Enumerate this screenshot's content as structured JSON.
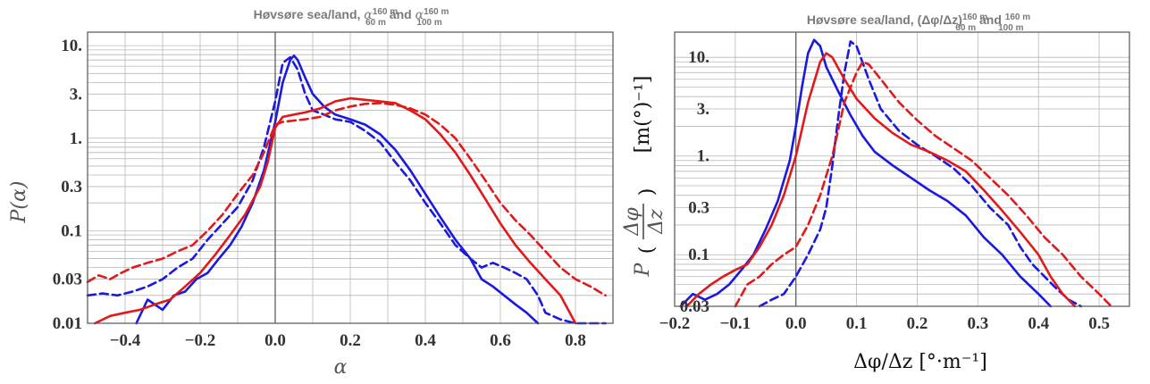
{
  "chart_data": [
    {
      "type": "line",
      "title": "Høvsøre sea/land, α|160 m/60 m and α|160 m/100 m",
      "title_parts": {
        "main": "Høvsøre sea/land, ",
        "sym1": "α",
        "and": " and ",
        "sym2": "α",
        "sup": "160 m",
        "sub1": "60 m",
        "sub2": "100 m"
      },
      "xlabel": "α",
      "ylabel": "P(α)",
      "xlim": [
        -0.5,
        0.9
      ],
      "ylim": [
        0.01,
        14
      ],
      "yscale": "log",
      "grid": true,
      "x_ticks": [
        -0.4,
        -0.2,
        0.0,
        0.2,
        0.4,
        0.6,
        0.8
      ],
      "x_tick_labels": [
        "−0.4",
        "−0.2",
        "0.0",
        "0.2",
        "0.4",
        "0.6",
        "0.8"
      ],
      "y_ticks": [
        0.01,
        0.03,
        0.1,
        0.3,
        1,
        3,
        10
      ],
      "y_tick_labels": [
        "0.01",
        "0.03",
        "0.1",
        "0.3",
        "1.",
        "3.",
        "10."
      ],
      "series": [
        {
          "color": "#1a1adf",
          "dash": "solid",
          "x": [
            -0.37,
            -0.34,
            -0.3,
            -0.27,
            -0.24,
            -0.21,
            -0.18,
            -0.15,
            -0.12,
            -0.09,
            -0.06,
            -0.03,
            0.0,
            0.02,
            0.04,
            0.05,
            0.06,
            0.08,
            0.1,
            0.13,
            0.16,
            0.2,
            0.24,
            0.28,
            0.32,
            0.36,
            0.4,
            0.44,
            0.48,
            0.52,
            0.55,
            0.58,
            0.61,
            0.64,
            0.67,
            0.7
          ],
          "values": [
            0.01,
            0.018,
            0.014,
            0.02,
            0.022,
            0.03,
            0.035,
            0.05,
            0.07,
            0.11,
            0.2,
            0.45,
            1.5,
            4.0,
            7.0,
            7.8,
            7.0,
            4.5,
            3.0,
            2.2,
            1.8,
            1.6,
            1.4,
            1.1,
            0.75,
            0.45,
            0.25,
            0.14,
            0.08,
            0.05,
            0.03,
            0.025,
            0.02,
            0.016,
            0.013,
            0.01
          ]
        },
        {
          "color": "#1a1adf",
          "dash": "dashed",
          "x": [
            -0.5,
            -0.46,
            -0.42,
            -0.38,
            -0.34,
            -0.3,
            -0.26,
            -0.22,
            -0.18,
            -0.14,
            -0.1,
            -0.06,
            -0.03,
            0.0,
            0.02,
            0.04,
            0.06,
            0.08,
            0.1,
            0.13,
            0.16,
            0.2,
            0.24,
            0.28,
            0.32,
            0.36,
            0.4,
            0.44,
            0.48,
            0.52,
            0.55,
            0.58,
            0.61,
            0.64,
            0.67,
            0.7,
            0.72,
            0.76,
            0.8,
            0.84,
            0.88
          ],
          "values": [
            0.02,
            0.021,
            0.02,
            0.022,
            0.025,
            0.03,
            0.04,
            0.05,
            0.08,
            0.12,
            0.18,
            0.35,
            0.8,
            2.5,
            6.5,
            7.5,
            5.5,
            3.0,
            2.0,
            1.8,
            1.6,
            1.5,
            1.2,
            0.9,
            0.55,
            0.35,
            0.2,
            0.12,
            0.07,
            0.05,
            0.04,
            0.045,
            0.04,
            0.035,
            0.03,
            0.02,
            0.013,
            0.011,
            0.01,
            0.01,
            0.01
          ]
        },
        {
          "color": "#e01a1a",
          "dash": "solid",
          "x": [
            -0.48,
            -0.44,
            -0.4,
            -0.36,
            -0.32,
            -0.28,
            -0.24,
            -0.2,
            -0.16,
            -0.12,
            -0.08,
            -0.04,
            -0.02,
            0.0,
            0.02,
            0.05,
            0.08,
            0.12,
            0.16,
            0.2,
            0.24,
            0.28,
            0.32,
            0.36,
            0.4,
            0.44,
            0.48,
            0.52,
            0.56,
            0.6,
            0.64,
            0.68,
            0.72,
            0.76,
            0.8
          ],
          "values": [
            0.01,
            0.012,
            0.013,
            0.014,
            0.016,
            0.018,
            0.025,
            0.035,
            0.055,
            0.09,
            0.15,
            0.3,
            0.55,
            1.3,
            1.7,
            1.8,
            1.9,
            2.1,
            2.5,
            2.7,
            2.6,
            2.5,
            2.4,
            2.0,
            1.6,
            1.1,
            0.7,
            0.4,
            0.22,
            0.12,
            0.07,
            0.045,
            0.03,
            0.02,
            0.01
          ]
        },
        {
          "color": "#e01a1a",
          "dash": "dashed",
          "x": [
            -0.5,
            -0.47,
            -0.44,
            -0.41,
            -0.38,
            -0.34,
            -0.3,
            -0.26,
            -0.22,
            -0.18,
            -0.14,
            -0.1,
            -0.06,
            -0.03,
            0.0,
            0.02,
            0.05,
            0.08,
            0.12,
            0.16,
            0.2,
            0.24,
            0.28,
            0.32,
            0.36,
            0.4,
            0.44,
            0.48,
            0.52,
            0.56,
            0.6,
            0.64,
            0.68,
            0.72,
            0.76,
            0.8,
            0.84,
            0.88
          ],
          "values": [
            0.028,
            0.033,
            0.03,
            0.035,
            0.04,
            0.045,
            0.05,
            0.06,
            0.07,
            0.1,
            0.15,
            0.25,
            0.4,
            0.7,
            1.4,
            1.5,
            1.55,
            1.6,
            1.7,
            2.0,
            2.2,
            2.35,
            2.4,
            2.3,
            2.1,
            1.8,
            1.4,
            1.0,
            0.6,
            0.35,
            0.2,
            0.13,
            0.09,
            0.06,
            0.04,
            0.03,
            0.025,
            0.02
          ]
        }
      ]
    },
    {
      "type": "line",
      "title": "Høvsøre sea/land, (Δφ/Δz)|160 m/60 m and |160 m/100 m",
      "title_parts": {
        "main": "Høvsøre sea/land, ",
        "sym1": "(Δφ/Δz)",
        "and": " and ",
        "sym2": "",
        "sup": "160 m",
        "sub1": "60 m",
        "sub2": "100 m"
      },
      "xlabel": "Δφ/Δz [°·m⁻¹]",
      "ylabel": "P(Δφ/Δz)  [m(°)⁻¹]",
      "ylabel_parts": {
        "p": "P",
        "num": "Δφ",
        "den": "Δz",
        "unit": "[m(°)⁻¹]"
      },
      "xlim": [
        -0.2,
        0.55
      ],
      "ylim": [
        0.03,
        18
      ],
      "yscale": "log",
      "grid": true,
      "x_ticks": [
        -0.2,
        -0.1,
        0.0,
        0.1,
        0.2,
        0.3,
        0.4,
        0.5
      ],
      "x_tick_labels": [
        "−0.2",
        "−0.1",
        "0.0",
        "0.1",
        "0.2",
        "0.3",
        "0.4",
        "0.5"
      ],
      "y_ticks": [
        0.03,
        0.1,
        0.3,
        1,
        3,
        10
      ],
      "y_tick_labels": [
        "0.03",
        "0.1",
        "0.3",
        "1.",
        "3.",
        "10."
      ],
      "series": [
        {
          "color": "#1a1adf",
          "dash": "solid",
          "x": [
            -0.19,
            -0.17,
            -0.15,
            -0.13,
            -0.11,
            -0.09,
            -0.07,
            -0.05,
            -0.03,
            -0.01,
            0.0,
            0.01,
            0.02,
            0.03,
            0.04,
            0.05,
            0.07,
            0.09,
            0.11,
            0.13,
            0.16,
            0.19,
            0.22,
            0.25,
            0.28,
            0.31,
            0.34,
            0.37,
            0.4,
            0.42
          ],
          "values": [
            0.03,
            0.04,
            0.035,
            0.04,
            0.05,
            0.07,
            0.1,
            0.18,
            0.35,
            0.9,
            2.0,
            5.0,
            11.0,
            15.0,
            13.0,
            8.0,
            4.5,
            2.6,
            1.6,
            1.1,
            0.8,
            0.6,
            0.45,
            0.35,
            0.25,
            0.15,
            0.1,
            0.06,
            0.04,
            0.03
          ]
        },
        {
          "color": "#1a1adf",
          "dash": "dashed",
          "x": [
            -0.06,
            -0.04,
            -0.02,
            0.0,
            0.02,
            0.04,
            0.05,
            0.06,
            0.07,
            0.08,
            0.09,
            0.1,
            0.12,
            0.14,
            0.17,
            0.2,
            0.23,
            0.26,
            0.29,
            0.32,
            0.35,
            0.37,
            0.39,
            0.41,
            0.43,
            0.45,
            0.47
          ],
          "values": [
            0.03,
            0.035,
            0.04,
            0.06,
            0.1,
            0.18,
            0.3,
            0.8,
            2.5,
            7.0,
            14.5,
            13.0,
            6.0,
            3.0,
            1.8,
            1.3,
            1.0,
            0.75,
            0.5,
            0.3,
            0.2,
            0.12,
            0.08,
            0.06,
            0.045,
            0.035,
            0.03
          ]
        },
        {
          "color": "#e01a1a",
          "dash": "solid",
          "x": [
            -0.18,
            -0.16,
            -0.14,
            -0.12,
            -0.1,
            -0.08,
            -0.06,
            -0.04,
            -0.02,
            0.0,
            0.02,
            0.04,
            0.05,
            0.06,
            0.08,
            0.1,
            0.13,
            0.16,
            0.19,
            0.22,
            0.25,
            0.28,
            0.31,
            0.34,
            0.37,
            0.4,
            0.42,
            0.44,
            0.46
          ],
          "values": [
            0.03,
            0.04,
            0.05,
            0.06,
            0.07,
            0.08,
            0.12,
            0.2,
            0.4,
            1.0,
            3.5,
            9.0,
            11.0,
            10.0,
            6.0,
            3.8,
            2.4,
            1.7,
            1.3,
            1.1,
            0.9,
            0.7,
            0.45,
            0.28,
            0.17,
            0.1,
            0.06,
            0.04,
            0.03
          ]
        },
        {
          "color": "#e01a1a",
          "dash": "dashed",
          "x": [
            -0.1,
            -0.08,
            -0.06,
            -0.04,
            -0.02,
            0.0,
            0.02,
            0.04,
            0.06,
            0.08,
            0.1,
            0.11,
            0.12,
            0.14,
            0.17,
            0.2,
            0.23,
            0.26,
            0.29,
            0.32,
            0.35,
            0.38,
            0.41,
            0.44,
            0.47,
            0.5,
            0.52
          ],
          "values": [
            0.03,
            0.05,
            0.06,
            0.08,
            0.1,
            0.12,
            0.2,
            0.4,
            1.0,
            3.5,
            7.0,
            9.0,
            8.5,
            6.0,
            3.5,
            2.3,
            1.6,
            1.2,
            0.9,
            0.6,
            0.4,
            0.25,
            0.15,
            0.1,
            0.06,
            0.04,
            0.03
          ]
        }
      ]
    }
  ]
}
